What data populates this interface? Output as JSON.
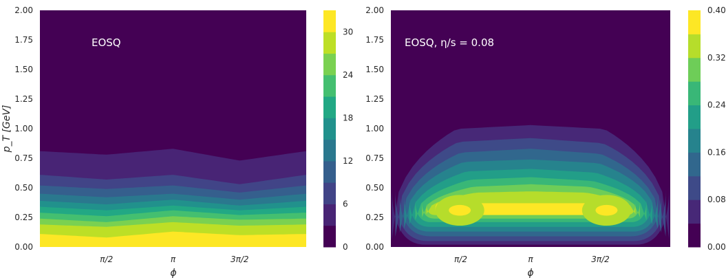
{
  "figure": {
    "panels": [
      {
        "annotation": "EOSQ",
        "ylabel": "p_T [GeV]",
        "xlabel": "ϕ"
      },
      {
        "annotation": "EOSQ,  η/s = 0.08",
        "ylabel": "",
        "xlabel": "ϕ"
      }
    ]
  },
  "chart_data": [
    {
      "type": "heatmap",
      "style": "filled-contour",
      "colormap": "viridis",
      "annotation": "EOSQ",
      "xlabel": "ϕ",
      "ylabel": "p_T [GeV]",
      "xlim": [
        0,
        6.2832
      ],
      "ylim": [
        0,
        2.0
      ],
      "xticks": [
        {
          "value": 1.5708,
          "label": "π/2"
        },
        {
          "value": 3.1416,
          "label": "π"
        },
        {
          "value": 4.7124,
          "label": "3π/2"
        }
      ],
      "yticks": [
        {
          "value": 0.0,
          "label": "0.00"
        },
        {
          "value": 0.25,
          "label": "0.25"
        },
        {
          "value": 0.5,
          "label": "0.50"
        },
        {
          "value": 0.75,
          "label": "0.75"
        },
        {
          "value": 1.0,
          "label": "1.00"
        },
        {
          "value": 1.25,
          "label": "1.25"
        },
        {
          "value": 1.5,
          "label": "1.50"
        },
        {
          "value": 1.75,
          "label": "1.75"
        },
        {
          "value": 2.0,
          "label": "2.00"
        }
      ],
      "levels": [
        0,
        3,
        6,
        9,
        12,
        15,
        18,
        21,
        24,
        27,
        30,
        33
      ],
      "colorbar_ticks": [
        "0",
        "6",
        "12",
        "18",
        "24",
        "30"
      ],
      "colorbar_range": [
        0,
        33
      ],
      "contour_edges_pT": [
        {
          "level": 3,
          "phi": [
            0,
            1.5708,
            3.1416,
            4.7124,
            6.2832
          ],
          "pT": [
            0.81,
            0.78,
            0.83,
            0.73,
            0.81
          ]
        },
        {
          "level": 6,
          "phi": [
            0,
            1.5708,
            3.1416,
            4.7124,
            6.2832
          ],
          "pT": [
            0.61,
            0.57,
            0.61,
            0.53,
            0.61
          ]
        },
        {
          "level": 9,
          "phi": [
            0,
            1.5708,
            3.1416,
            4.7124,
            6.2832
          ],
          "pT": [
            0.52,
            0.49,
            0.52,
            0.46,
            0.52
          ]
        },
        {
          "level": 12,
          "phi": [
            0,
            1.5708,
            3.1416,
            4.7124,
            6.2832
          ],
          "pT": [
            0.45,
            0.42,
            0.45,
            0.4,
            0.45
          ]
        },
        {
          "level": 15,
          "phi": [
            0,
            1.5708,
            3.1416,
            4.7124,
            6.2832
          ],
          "pT": [
            0.39,
            0.36,
            0.4,
            0.35,
            0.39
          ]
        },
        {
          "level": 18,
          "phi": [
            0,
            1.5708,
            3.1416,
            4.7124,
            6.2832
          ],
          "pT": [
            0.34,
            0.31,
            0.35,
            0.31,
            0.34
          ]
        },
        {
          "level": 21,
          "phi": [
            0,
            1.5708,
            3.1416,
            4.7124,
            6.2832
          ],
          "pT": [
            0.29,
            0.26,
            0.31,
            0.27,
            0.29
          ]
        },
        {
          "level": 24,
          "phi": [
            0,
            1.5708,
            3.1416,
            4.7124,
            6.2832
          ],
          "pT": [
            0.24,
            0.21,
            0.26,
            0.23,
            0.24
          ]
        },
        {
          "level": 27,
          "phi": [
            0,
            1.5708,
            3.1416,
            4.7124,
            6.2832
          ],
          "pT": [
            0.19,
            0.17,
            0.21,
            0.18,
            0.19
          ]
        },
        {
          "level": 30,
          "phi": [
            0,
            1.5708,
            3.1416,
            4.7124,
            6.2832
          ],
          "pT": [
            0.11,
            0.08,
            0.13,
            0.1,
            0.11
          ]
        }
      ]
    },
    {
      "type": "heatmap",
      "style": "filled-contour",
      "colormap": "viridis",
      "annotation": "EOSQ,  η/s = 0.08",
      "xlabel": "ϕ",
      "ylabel": "",
      "xlim": [
        0,
        6.2832
      ],
      "ylim": [
        0,
        2.0
      ],
      "xticks": [
        {
          "value": 1.5708,
          "label": "π/2"
        },
        {
          "value": 3.1416,
          "label": "π"
        },
        {
          "value": 4.7124,
          "label": "3π/2"
        }
      ],
      "yticks": [
        {
          "value": 0.0,
          "label": "0.00"
        },
        {
          "value": 0.25,
          "label": "0.25"
        },
        {
          "value": 0.5,
          "label": "0.50"
        },
        {
          "value": 0.75,
          "label": "0.75"
        },
        {
          "value": 1.0,
          "label": "1.00"
        },
        {
          "value": 1.25,
          "label": "1.25"
        },
        {
          "value": 1.5,
          "label": "1.50"
        },
        {
          "value": 1.75,
          "label": "1.75"
        },
        {
          "value": 2.0,
          "label": "2.00"
        }
      ],
      "levels": [
        0,
        0.04,
        0.08,
        0.12,
        0.16,
        0.2,
        0.24,
        0.28,
        0.32,
        0.36,
        0.4
      ],
      "colorbar_ticks": [
        "0.00",
        "0.08",
        "0.16",
        "0.24",
        "0.32",
        "0.40"
      ],
      "colorbar_range": [
        0,
        0.4
      ],
      "contour_regions": [
        {
          "level": 0.04,
          "phi_range": [
            0.02,
            6.26
          ],
          "pT_range": [
            0.02,
            1.03
          ],
          "top_pT": [
            0.96,
            1.0,
            1.03,
            1.0,
            0.96
          ]
        },
        {
          "level": 0.08,
          "phi_range": [
            0.1,
            6.18
          ],
          "pT_range": [
            0.05,
            0.92
          ],
          "top_pT": [
            0.86,
            0.89,
            0.92,
            0.88,
            0.86
          ]
        },
        {
          "level": 0.12,
          "phi_range": [
            0.2,
            6.08
          ],
          "pT_range": [
            0.09,
            0.83
          ],
          "top_pT": [
            0.77,
            0.8,
            0.83,
            0.79,
            0.77
          ]
        },
        {
          "level": 0.16,
          "phi_range": [
            0.3,
            6.0
          ],
          "pT_range": [
            0.13,
            0.74
          ],
          "top_pT": [
            0.69,
            0.72,
            0.74,
            0.71,
            0.69
          ]
        },
        {
          "level": 0.2,
          "phi_range": [
            0.42,
            5.88
          ],
          "pT_range": [
            0.17,
            0.66
          ],
          "top_pT": [
            0.61,
            0.64,
            0.66,
            0.63,
            0.61
          ]
        },
        {
          "level": 0.24,
          "phi_range": [
            0.55,
            5.75
          ],
          "pT_range": [
            0.21,
            0.59
          ],
          "top_pT": [
            0.54,
            0.57,
            0.59,
            0.56,
            0.54
          ]
        },
        {
          "level": 0.28,
          "phi_range": [
            0.7,
            5.6
          ],
          "pT_range": [
            0.24,
            0.53
          ],
          "top_pT": [
            0.49,
            0.51,
            0.53,
            0.51,
            0.49
          ]
        },
        {
          "level": 0.32,
          "phi_range": [
            0.8,
            5.5
          ],
          "pT_range": [
            0.27,
            0.47
          ],
          "top_pT": [
            0.44,
            0.46,
            0.47,
            0.46,
            0.44
          ]
        },
        {
          "level": 0.36,
          "phi_range": [
            1.0,
            5.2
          ],
          "pT_range": [
            0.27,
            0.37
          ]
        }
      ],
      "peaks": [
        {
          "phi": 1.55,
          "pT": 0.31,
          "value": 0.38
        },
        {
          "phi": 4.85,
          "pT": 0.31,
          "value": 0.39
        }
      ]
    }
  ]
}
